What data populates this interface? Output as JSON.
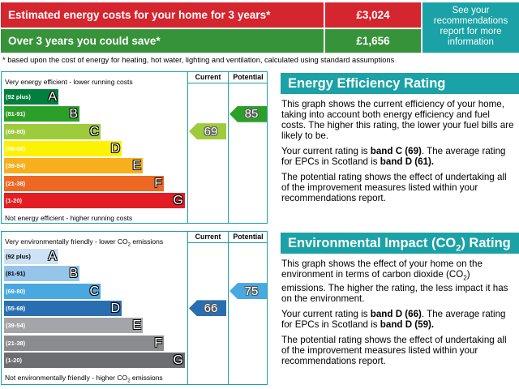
{
  "summary": {
    "row1_label": "Estimated energy costs for your home for 3 years*",
    "row1_value": "£3,024",
    "row2_label": "Over 3 years you could save*",
    "row2_value": "£1,656",
    "link_text": "See your recommendations report for more information"
  },
  "footnote": "* based upon the cost of energy for heating, hot water, lighting and ventilation, calculated using standard assumptions",
  "efficiency_chart": {
    "top_caption": "Very energy efficient - lower running costs",
    "bottom_caption": "Not energy efficient - higher running costs",
    "col_current": "Current",
    "col_potential": "Potential",
    "bands": [
      {
        "range": "(92 plus)",
        "letter": "A",
        "color": "#007f3d"
      },
      {
        "range": "(81-91)",
        "letter": "B",
        "color": "#2c9f29"
      },
      {
        "range": "(69-80)",
        "letter": "C",
        "color": "#9dcb3c"
      },
      {
        "range": "(55-68)",
        "letter": "D",
        "color": "#fff200"
      },
      {
        "range": "(39-54)",
        "letter": "E",
        "color": "#f7af1d"
      },
      {
        "range": "(21-38)",
        "letter": "F",
        "color": "#ed6823"
      },
      {
        "range": "(1-20)",
        "letter": "G",
        "color": "#e31d23"
      }
    ],
    "current": {
      "value": "69",
      "band_index": 2,
      "color": "#9dcb3c"
    },
    "potential": {
      "value": "85",
      "band_index": 1,
      "color": "#2c9f29"
    }
  },
  "environment_chart": {
    "top_caption": "Very environmentally friendly - lower CO",
    "top_caption_sub": "2",
    "top_caption_end": " emissions",
    "bottom_caption": "Not environmentally friendly - higher CO",
    "bottom_caption_sub": "2",
    "bottom_caption_end": " emissions",
    "col_current": "Current",
    "col_potential": "Potential",
    "bands": [
      {
        "range": "(92 plus)",
        "letter": "A",
        "color": "#cde3f5"
      },
      {
        "range": "(81-91)",
        "letter": "B",
        "color": "#97c5ea"
      },
      {
        "range": "(69-80)",
        "letter": "C",
        "color": "#48a8df"
      },
      {
        "range": "(55-68)",
        "letter": "D",
        "color": "#2a6eb2"
      },
      {
        "range": "(39-54)",
        "letter": "E",
        "color": "#a4a5a8"
      },
      {
        "range": "(21-38)",
        "letter": "F",
        "color": "#8a8b8e"
      },
      {
        "range": "(1-20)",
        "letter": "G",
        "color": "#6c6d70"
      }
    ],
    "current": {
      "value": "66",
      "band_index": 3,
      "color": "#2a6eb2"
    },
    "potential": {
      "value": "75",
      "band_index": 2,
      "color": "#48a8df"
    }
  },
  "efficiency_panel": {
    "title": "Energy Efficiency Rating",
    "para1": "This graph shows the current efficiency of your home, taking into account both energy efficiency and fuel costs. The higher this rating, the lower your fuel bills are likely to be.",
    "para2_pre": "Your current rating is ",
    "para2_bold1": "band C (69)",
    "para2_mid": ". The average rating for EPCs in Scotland is ",
    "para2_bold2": "band D (61).",
    "para3": "The potential rating shows the effect of undertaking all of the improvement measures listed within your recommendations report."
  },
  "environment_panel": {
    "title": "Environmental Impact (CO",
    "title_sub": "2",
    "title_end": ") Rating",
    "para1_a": "This graph shows the effect of your home on the environment in terms of carbon dioxide (CO",
    "para1_sub": "2",
    "para1_b": ") emissions. The higher the rating, the less impact it has on the environment.",
    "para2_pre": "Your current rating is ",
    "para2_bold1": "band D (66)",
    "para2_mid": ". The average rating for EPCs in Scotland is ",
    "para2_bold2": "band D (59).",
    "para3": "The potential rating shows the effect of undertaking all of the improvement measures listed within your recommendations report."
  }
}
